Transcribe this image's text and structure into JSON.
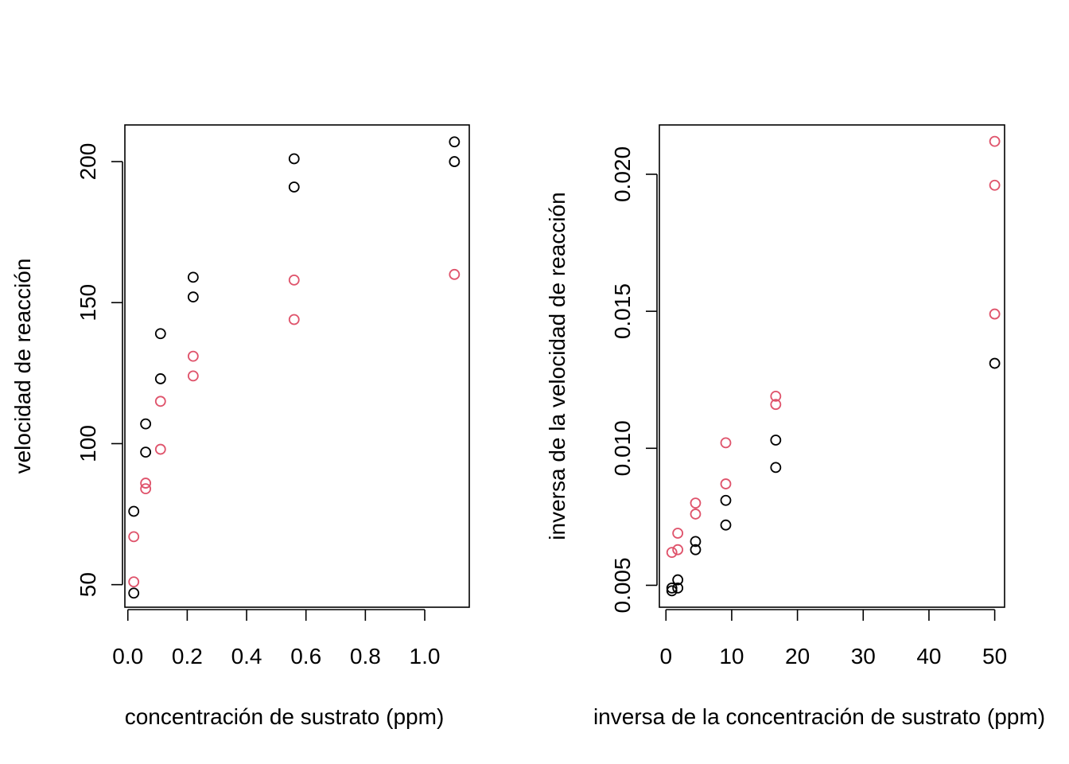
{
  "colors": {
    "series_a": "#000000",
    "series_b": "#DF536B"
  },
  "chart_data": [
    {
      "type": "scatter",
      "title": "",
      "xlabel": "concentración de sustrato (ppm)",
      "ylabel": "velocidad de reacción",
      "xlim": [
        -0.01,
        1.15
      ],
      "ylim": [
        42,
        213
      ],
      "xticks": [
        0.0,
        0.2,
        0.4,
        0.6,
        0.8,
        1.0
      ],
      "xtick_labels": [
        "0.0",
        "0.2",
        "0.4",
        "0.6",
        "0.8",
        "1.0"
      ],
      "yticks": [
        50,
        100,
        150,
        200
      ],
      "ytick_labels": [
        "50",
        "100",
        "150",
        "200"
      ],
      "grid": false,
      "series": [
        {
          "color": "#000000",
          "x": [
            0.02,
            0.02,
            0.06,
            0.06,
            0.11,
            0.11,
            0.22,
            0.22,
            0.56,
            0.56,
            1.1,
            1.1
          ],
          "y": [
            76,
            47,
            97,
            107,
            123,
            139,
            159,
            152,
            191,
            201,
            207,
            200
          ]
        },
        {
          "color": "#DF536B",
          "x": [
            0.02,
            0.02,
            0.06,
            0.06,
            0.11,
            0.11,
            0.22,
            0.22,
            0.56,
            0.56,
            1.1
          ],
          "y": [
            67,
            51,
            84,
            86,
            98,
            115,
            131,
            124,
            144,
            158,
            160
          ]
        }
      ]
    },
    {
      "type": "scatter",
      "title": "",
      "xlabel": "inversa de la concentración de sustrato (ppm)",
      "ylabel": "inversa de la velocidad de reacción",
      "xlim": [
        -1.0,
        51.5
      ],
      "ylim": [
        0.0042,
        0.0218
      ],
      "xticks": [
        0,
        10,
        20,
        30,
        40,
        50
      ],
      "xtick_labels": [
        "0",
        "10",
        "20",
        "30",
        "40",
        "50"
      ],
      "yticks": [
        0.005,
        0.01,
        0.015,
        0.02
      ],
      "ytick_labels": [
        "0.005",
        "0.010",
        "0.015",
        "0.020"
      ],
      "grid": false,
      "series": [
        {
          "color": "#000000",
          "x": [
            0.9,
            0.9,
            1.8,
            1.8,
            4.5,
            4.5,
            9.1,
            9.1,
            16.7,
            16.7,
            50
          ],
          "y": [
            0.0049,
            0.0048,
            0.0052,
            0.0049,
            0.0066,
            0.0063,
            0.0081,
            0.0072,
            0.0103,
            0.0093,
            0.0131
          ]
        },
        {
          "color": "#DF536B",
          "x": [
            0.9,
            1.8,
            1.8,
            4.5,
            4.5,
            9.1,
            9.1,
            16.7,
            16.7,
            50,
            50,
            50
          ],
          "y": [
            0.0062,
            0.0063,
            0.0069,
            0.008,
            0.0076,
            0.0102,
            0.0087,
            0.0119,
            0.0116,
            0.0196,
            0.0149,
            0.0212
          ]
        }
      ]
    }
  ]
}
